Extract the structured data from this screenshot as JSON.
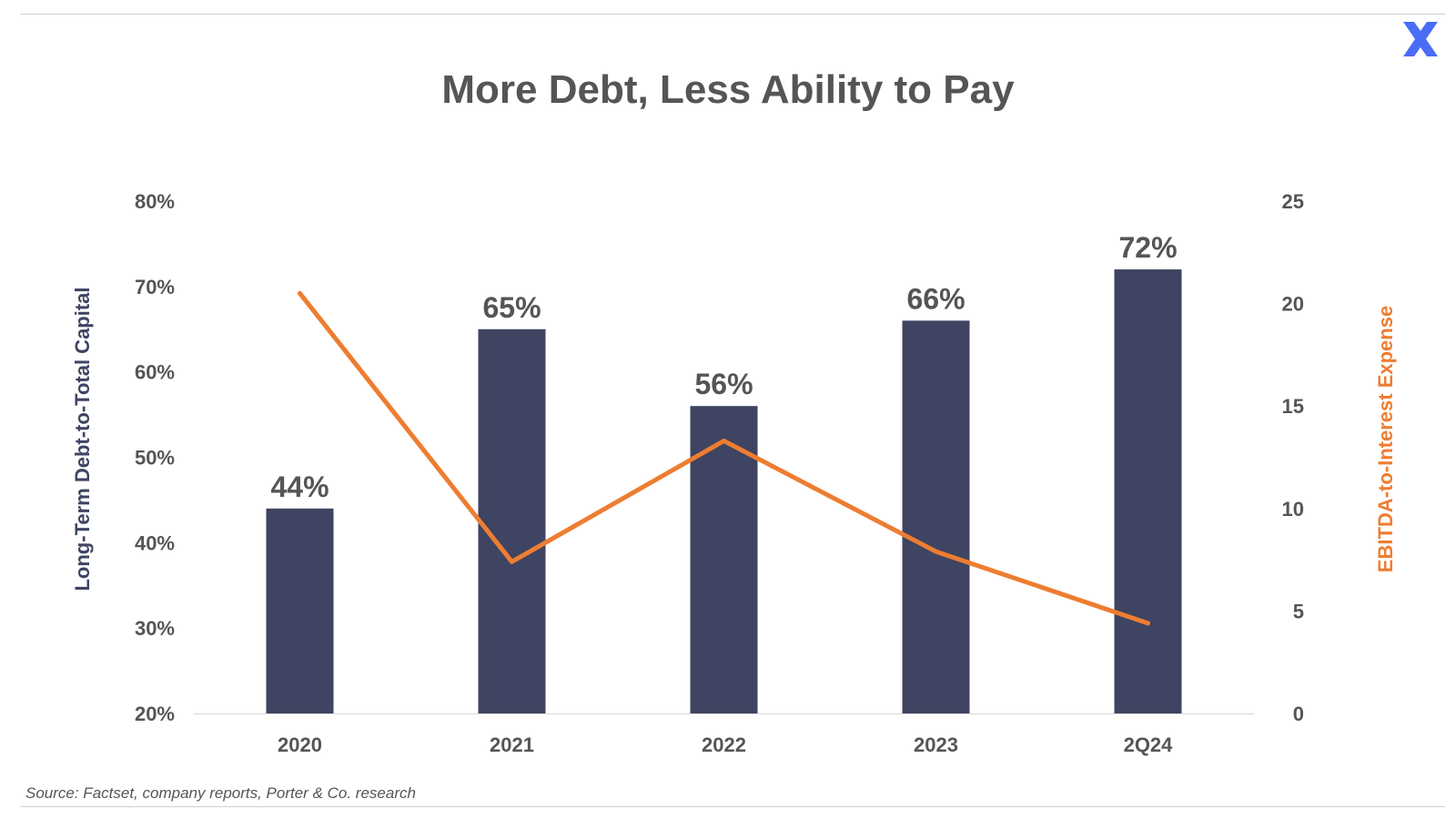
{
  "logo_icon": "x-logo-icon",
  "source": "Source: Factset, company reports, Porter & Co. research",
  "colors": {
    "bars": "#3e4461",
    "line": "#ed7d31",
    "text": "#555555",
    "logo": "#4a6cf7"
  },
  "chart_data": {
    "type": "bar",
    "title": "More Debt, Less Ability to Pay",
    "categories": [
      "2020",
      "2021",
      "2022",
      "2023",
      "2Q24"
    ],
    "series": [
      {
        "name": "Long-Term Debt-to-Total Capital",
        "type": "bar",
        "axis": "left",
        "values": [
          44,
          65,
          56,
          66,
          72
        ],
        "data_labels": [
          "44%",
          "65%",
          "56%",
          "66%",
          "72%"
        ]
      },
      {
        "name": "EBITDA-to-Interest Expense",
        "type": "line",
        "axis": "right",
        "values": [
          20.5,
          7.4,
          13.3,
          7.9,
          4.4
        ]
      }
    ],
    "ylabel_left": "Long-Term Debt-to-Total Capital",
    "ylabel_right": "EBITDA-to-Interest Expense",
    "ylim_left": [
      20,
      80
    ],
    "yticks_left": [
      "20%",
      "30%",
      "40%",
      "50%",
      "60%",
      "70%",
      "80%"
    ],
    "ylim_right": [
      0,
      25
    ],
    "yticks_right": [
      "0",
      "5",
      "10",
      "15",
      "20",
      "25"
    ],
    "grid": false
  }
}
